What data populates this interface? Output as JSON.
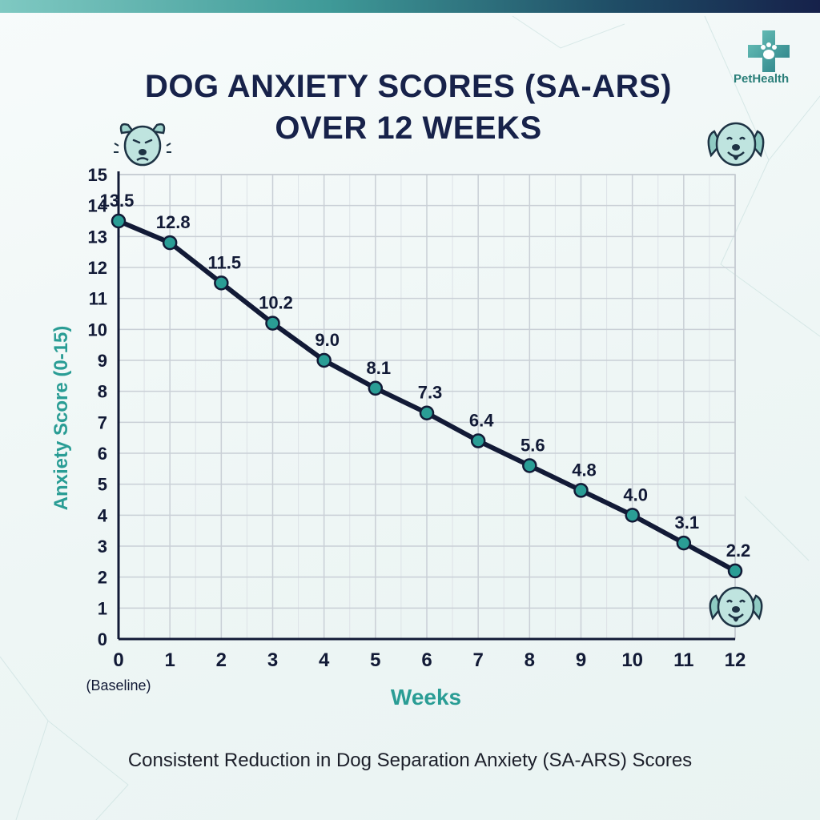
{
  "brand": {
    "name": "PetHealth",
    "logo_icon": "paw-cross-icon",
    "accent_color": "#2a9d95",
    "dark_color": "#17224a"
  },
  "header": {
    "title_line1": "DOG ANXIETY SCORES (SA-ARS)",
    "title_line2": "OVER 12 WEEKS"
  },
  "icons": {
    "anxious_dog": "anxious-dog-icon",
    "happy_dog_top": "happy-dog-icon",
    "happy_dog_bottom": "happy-dog-icon"
  },
  "footer": {
    "caption": "Consistent Reduction in Dog Separation Anxiety (SA-ARS) Scores"
  },
  "chart_data": {
    "type": "line",
    "xlabel": "Weeks",
    "ylabel": "Anxiety Score (0-15)",
    "x": [
      0,
      1,
      2,
      3,
      4,
      5,
      6,
      7,
      8,
      9,
      10,
      11,
      12
    ],
    "x_tick_labels": [
      "0",
      "1",
      "2",
      "3",
      "4",
      "5",
      "6",
      "7",
      "8",
      "9",
      "10",
      "11",
      "12"
    ],
    "x_tick_sublabel": {
      "index": 0,
      "text": "(Baseline)"
    },
    "xlim": [
      0,
      12
    ],
    "ylim": [
      0,
      15
    ],
    "y_ticks": [
      0,
      1,
      2,
      3,
      4,
      5,
      6,
      7,
      8,
      9,
      10,
      11,
      12,
      13,
      14,
      15
    ],
    "grid": true,
    "series": [
      {
        "values": [
          13.5,
          12.8,
          11.5,
          10.2,
          9.0,
          8.1,
          7.3,
          6.4,
          5.6,
          4.8,
          4.0,
          3.1,
          2.2
        ],
        "data_labels": [
          "13.5",
          "12.8",
          "11.5",
          "10.2",
          "9.0",
          "8.1",
          "7.3",
          "6.4",
          "5.6",
          "4.8",
          "4.0",
          "3.1",
          "2.2"
        ],
        "line_color": "#121a36",
        "marker_color": "#2a9d95"
      }
    ],
    "xlabel_color": "#2a9d95",
    "ylabel_color": "#2a9d95"
  }
}
